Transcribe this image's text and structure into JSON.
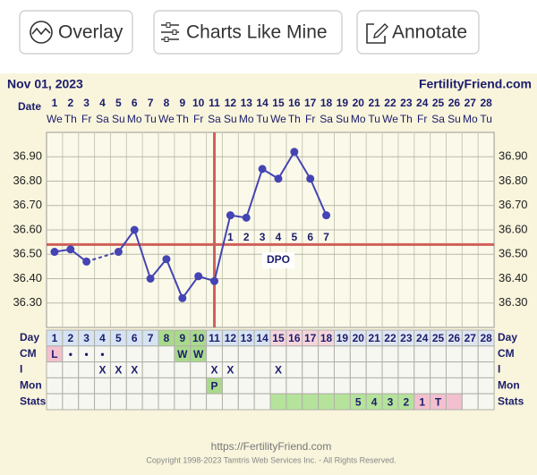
{
  "toolbar": {
    "buttons": [
      "Overlay",
      "Charts Like Mine",
      "Annotate"
    ]
  },
  "chart_data": {
    "type": "line",
    "date": "Nov 01, 2023",
    "site": "FertilityFriend.com",
    "date_label": "Date",
    "categories": [
      1,
      2,
      3,
      4,
      5,
      6,
      7,
      8,
      9,
      10,
      11,
      12,
      13,
      14,
      15,
      16,
      17,
      18,
      19,
      20,
      21,
      22,
      23,
      24,
      25,
      26,
      27,
      28
    ],
    "weekdays": [
      "We",
      "Th",
      "Fr",
      "Sa",
      "Su",
      "Mo",
      "Tu",
      "We",
      "Th",
      "Fr",
      "Sa",
      "Su",
      "Mo",
      "Tu",
      "We",
      "Th",
      "Fr",
      "Sa",
      "Su",
      "Mo",
      "Tu",
      "We",
      "Th",
      "Fr",
      "Sa",
      "Su",
      "Mo",
      "Tu"
    ],
    "values": [
      36.51,
      36.52,
      36.47,
      null,
      36.51,
      36.6,
      36.4,
      36.48,
      36.32,
      36.41,
      36.39,
      36.66,
      36.65,
      36.85,
      36.81,
      36.92,
      36.81,
      36.66,
      null,
      null,
      null,
      null,
      null,
      null,
      null,
      null,
      null,
      null
    ],
    "color": "#4444b4",
    "coverline": 36.54,
    "coverline_color": "#d0605a",
    "ovulation_day": 11,
    "dpo_label": "DPO",
    "dpo": [
      null,
      null,
      null,
      null,
      null,
      null,
      null,
      null,
      null,
      null,
      null,
      1,
      2,
      3,
      4,
      5,
      6,
      7,
      null,
      null,
      null,
      null,
      null,
      null,
      null,
      null,
      null,
      null
    ],
    "ylim": [
      36.2,
      37.0
    ],
    "yticks": [
      {
        "value": 36.3,
        "label": "36.30"
      },
      {
        "value": 36.4,
        "label": "36.40"
      },
      {
        "value": 36.5,
        "label": "36.50"
      },
      {
        "value": 36.6,
        "label": "36.60"
      },
      {
        "value": 36.7,
        "label": "36.70"
      },
      {
        "value": 36.8,
        "label": "36.80"
      },
      {
        "value": 36.9,
        "label": "36.90"
      }
    ],
    "grid": true
  },
  "table": {
    "rows": [
      {
        "label": "Day",
        "colors": [
          "#d5e3f3",
          "#d5e3f3",
          "#d5e3f3",
          "#d5e3f3",
          "#d5e3f3",
          "#d5e3f3",
          "#d5e3f3",
          "#a9da8c",
          "#a9da8c",
          "#a9da8c",
          "#d5e3f3",
          "#d5e3f3",
          "#d5e3f3",
          "#d5e3f3",
          "#f5d5dc",
          "#f5d5dc",
          "#f5d5dc",
          "#f5d5dc",
          "#dfe6f2",
          "#dfe6f2",
          "#dfe6f2",
          "#dfe6f2",
          "#dfe6f2",
          "#dfe6f2",
          "#dfe6f2",
          "#dfe6f2",
          "#dfe6f2",
          "#dfe6f2"
        ]
      },
      {
        "label": "CM",
        "cells": [
          "L",
          "•",
          "•",
          "•",
          null,
          null,
          null,
          null,
          "W",
          "W",
          null,
          null,
          null,
          null,
          null,
          null,
          null,
          null,
          null,
          null,
          null,
          null,
          null,
          null,
          null,
          null,
          null,
          null
        ],
        "colors": [
          "#f2c0cf",
          null,
          null,
          null,
          null,
          null,
          null,
          null,
          "#a9da8c",
          "#a9da8c",
          null,
          null,
          null,
          null,
          null,
          null,
          null,
          null,
          null,
          null,
          null,
          null,
          null,
          null,
          null,
          null,
          null,
          null
        ]
      },
      {
        "label": "I",
        "cells": [
          null,
          null,
          null,
          "X",
          "X",
          "X",
          null,
          null,
          null,
          null,
          "X",
          "X",
          null,
          null,
          "X",
          null,
          null,
          null,
          null,
          null,
          null,
          null,
          null,
          null,
          null,
          null,
          null,
          null
        ]
      },
      {
        "label": "Mon",
        "cells": [
          null,
          null,
          null,
          null,
          null,
          null,
          null,
          null,
          null,
          null,
          "P",
          null,
          null,
          null,
          null,
          null,
          null,
          null,
          null,
          null,
          null,
          null,
          null,
          null,
          null,
          null,
          null,
          null
        ],
        "colors": [
          null,
          null,
          null,
          null,
          null,
          null,
          null,
          null,
          null,
          null,
          "#a9da8c",
          null,
          null,
          null,
          null,
          null,
          null,
          null,
          null,
          null,
          null,
          null,
          null,
          null,
          null,
          null,
          null,
          null
        ]
      },
      {
        "label": "Stats",
        "cells": [
          null,
          null,
          null,
          null,
          null,
          null,
          null,
          null,
          null,
          null,
          null,
          null,
          null,
          null,
          null,
          null,
          null,
          null,
          null,
          5,
          4,
          3,
          2,
          1,
          "T",
          null,
          null,
          null
        ],
        "colors": [
          null,
          null,
          null,
          null,
          null,
          null,
          null,
          null,
          null,
          null,
          null,
          null,
          null,
          null,
          "#b5e39b",
          "#b5e39b",
          "#b5e39b",
          "#b5e39b",
          "#b5e39b",
          "#b5e39b",
          "#b5e39b",
          "#b5e39b",
          "#b5e39b",
          "#f2c0cf",
          "#f2c0cf",
          "#f2c0cf",
          null,
          null
        ]
      }
    ]
  },
  "footer": {
    "url": "https://FertilityFriend.com",
    "copyright": "Copyright 1998-2023 Tamtris Web Services Inc. - All Rights Reserved."
  }
}
